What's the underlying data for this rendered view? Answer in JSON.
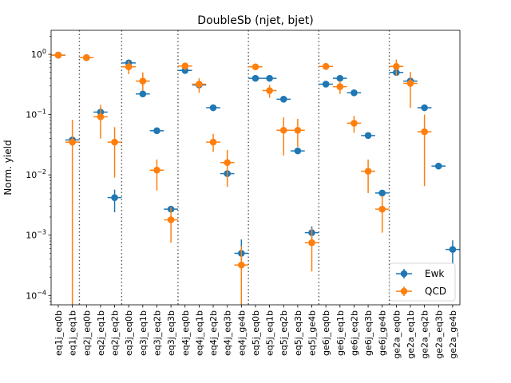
{
  "chart_data": {
    "type": "scatter",
    "title": "DoubleSb (njet, bjet)",
    "xlabel": "",
    "ylabel": "Norm. yield",
    "yscale": "log",
    "ylim": [
      7e-05,
      2.5
    ],
    "y_ticks": [
      {
        "value": 0.0001,
        "base": "10",
        "exp": "−4"
      },
      {
        "value": 0.001,
        "base": "10",
        "exp": "−3"
      },
      {
        "value": 0.01,
        "base": "10",
        "exp": "−2"
      },
      {
        "value": 0.1,
        "base": "10",
        "exp": "−1"
      },
      {
        "value": 1,
        "base": "10",
        "exp": "0"
      }
    ],
    "categories": [
      "eq1j_eq0b",
      "eq1j_eq1b",
      "eq2j_eq0b",
      "eq2j_eq1b",
      "eq2j_eq2b",
      "eq3j_eq0b",
      "eq3j_eq1b",
      "eq3j_eq2b",
      "eq3j_eq3b",
      "eq4j_eq0b",
      "eq4j_eq1b",
      "eq4j_eq2b",
      "eq4j_eq3b",
      "eq4j_ge4b",
      "eq5j_eq0b",
      "eq5j_eq1b",
      "eq5j_eq2b",
      "eq5j_eq3b",
      "eq5j_ge4b",
      "ge6j_eq0b",
      "ge6j_eq1b",
      "ge6j_eq2b",
      "ge6j_eq3b",
      "ge6j_ge4b",
      "ge2a_eq0b",
      "ge2a_eq1b",
      "ge2a_eq2b",
      "ge2a_eq3b",
      "ge2a_ge4b"
    ],
    "group_dividers_after_index": [
      1,
      4,
      8,
      13,
      18,
      23
    ],
    "grid": false,
    "legend_position": "lower-right",
    "series": [
      {
        "name": "Ewk",
        "color": "#1f77b4",
        "values": [
          0.97,
          0.038,
          0.88,
          0.11,
          0.0042,
          0.72,
          0.22,
          0.054,
          0.0027,
          0.54,
          0.31,
          0.13,
          0.0105,
          0.0005,
          0.4,
          0.4,
          0.18,
          0.025,
          0.0011,
          0.32,
          0.4,
          0.23,
          0.045,
          0.005,
          0.5,
          0.36,
          0.13,
          0.014,
          0.00058
        ],
        "err_low": [
          0.97,
          0.038,
          0.88,
          0.11,
          0.0024,
          0.72,
          0.22,
          0.054,
          0.0027,
          0.54,
          0.31,
          0.13,
          0.0105,
          0.0003,
          0.4,
          0.4,
          0.18,
          0.025,
          0.0008,
          0.32,
          0.4,
          0.23,
          0.045,
          0.005,
          0.5,
          0.36,
          0.13,
          0.014,
          0.00033
        ],
        "err_high": [
          0.97,
          0.038,
          0.88,
          0.11,
          0.0057,
          0.72,
          0.22,
          0.054,
          0.0027,
          0.54,
          0.31,
          0.13,
          0.0105,
          0.00085,
          0.4,
          0.4,
          0.18,
          0.025,
          0.0014,
          0.32,
          0.4,
          0.23,
          0.045,
          0.005,
          0.5,
          0.36,
          0.13,
          0.014,
          0.00082
        ]
      },
      {
        "name": "QCD",
        "color": "#ff7f0e",
        "values": [
          0.97,
          0.035,
          0.88,
          0.092,
          0.035,
          0.62,
          0.36,
          0.012,
          0.0018,
          0.64,
          0.32,
          0.035,
          0.016,
          0.00032,
          0.62,
          0.25,
          0.055,
          0.055,
          0.00075,
          0.63,
          0.29,
          0.072,
          0.0115,
          0.0027,
          0.63,
          0.33,
          0.052,
          null,
          null
        ],
        "err_low": [
          0.9,
          5e-05,
          0.82,
          0.04,
          0.009,
          0.47,
          0.25,
          0.0055,
          0.00075,
          0.55,
          0.23,
          0.024,
          0.0063,
          5e-05,
          0.55,
          0.19,
          0.021,
          0.029,
          0.00025,
          0.55,
          0.22,
          0.05,
          0.005,
          0.0011,
          0.44,
          0.13,
          0.0065,
          null,
          null
        ],
        "err_high": [
          1.05,
          0.082,
          0.95,
          0.145,
          0.062,
          0.78,
          0.5,
          0.018,
          0.0029,
          0.73,
          0.4,
          0.048,
          0.026,
          0.00065,
          0.69,
          0.31,
          0.09,
          0.085,
          0.0013,
          0.71,
          0.36,
          0.095,
          0.018,
          0.0045,
          0.82,
          0.51,
          0.1,
          null,
          null
        ]
      }
    ]
  }
}
